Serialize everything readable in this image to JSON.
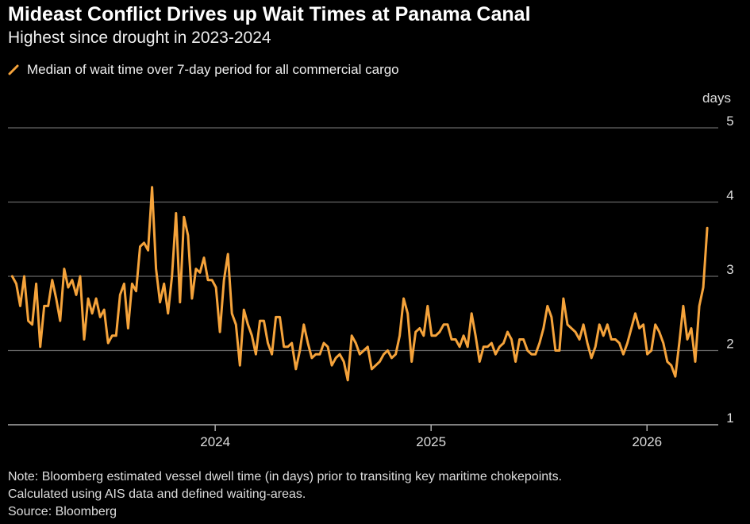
{
  "title": "Mideast Conflict Drives up Wait Times at Panama Canal",
  "subtitle": "Highest since drought in 2023-2024",
  "legend": {
    "label": "Median of wait time over 7-day period for all commercial cargo"
  },
  "footer": {
    "note": "Note: Bloomberg estimated vessel dwell time (in days) prior to transiting key maritime chokepoints.",
    "note2": "Calculated using AIS data and defined waiting-areas.",
    "source": "Source: Bloomberg"
  },
  "colors": {
    "line": "#f5a33b",
    "grid": "#666666",
    "background": "#000000"
  },
  "chart_data": {
    "type": "line",
    "title": "Mideast Conflict Drives up Wait Times at Panama Canal",
    "subtitle": "Highest since drought in 2023-2024",
    "ylabel": "days",
    "xlabel": "",
    "ylim": [
      1,
      5
    ],
    "yticks": [
      1,
      2,
      3,
      4,
      5
    ],
    "xlim": [
      2023.04,
      2026.33
    ],
    "xticks": [
      {
        "value": 2024,
        "label": "2024"
      },
      {
        "value": 2025,
        "label": "2025"
      },
      {
        "value": 2026,
        "label": "2026"
      }
    ],
    "grid": true,
    "legend_position": "top-left",
    "series": [
      {
        "name": "Median of wait time over 7-day period for all commercial cargo",
        "x_start": 2023.06,
        "x_step": 0.0185,
        "values": [
          3.0,
          2.9,
          2.6,
          3.0,
          2.4,
          2.35,
          2.9,
          2.05,
          2.6,
          2.6,
          2.95,
          2.7,
          2.4,
          3.1,
          2.85,
          2.95,
          2.75,
          3.0,
          2.15,
          2.7,
          2.5,
          2.7,
          2.45,
          2.55,
          2.1,
          2.2,
          2.2,
          2.75,
          2.9,
          2.3,
          2.9,
          2.8,
          3.4,
          3.45,
          3.35,
          4.2,
          3.1,
          2.65,
          2.9,
          2.5,
          3.0,
          3.85,
          2.65,
          3.8,
          3.55,
          2.7,
          3.1,
          3.05,
          3.25,
          2.95,
          2.95,
          2.85,
          2.25,
          2.95,
          3.3,
          2.5,
          2.35,
          1.8,
          2.55,
          2.35,
          2.2,
          1.95,
          2.4,
          2.4,
          2.1,
          1.95,
          2.45,
          2.45,
          2.05,
          2.05,
          2.1,
          1.75,
          2.0,
          2.35,
          2.1,
          1.9,
          1.95,
          1.95,
          2.1,
          2.05,
          1.8,
          1.9,
          1.95,
          1.85,
          1.6,
          2.2,
          2.1,
          1.95,
          2.0,
          2.05,
          1.75,
          1.8,
          1.85,
          1.95,
          2.0,
          1.9,
          1.95,
          2.2,
          2.7,
          2.5,
          1.85,
          2.25,
          2.3,
          2.2,
          2.6,
          2.2,
          2.2,
          2.25,
          2.35,
          2.35,
          2.15,
          2.15,
          2.05,
          2.2,
          2.05,
          2.5,
          2.2,
          1.85,
          2.05,
          2.05,
          2.1,
          1.95,
          2.05,
          2.1,
          2.25,
          2.15,
          1.85,
          2.15,
          2.15,
          2.0,
          1.95,
          1.95,
          2.1,
          2.3,
          2.6,
          2.45,
          2.0,
          2.0,
          2.7,
          2.35,
          2.3,
          2.25,
          2.15,
          2.35,
          2.1,
          1.9,
          2.05,
          2.35,
          2.2,
          2.35,
          2.15,
          2.15,
          2.1,
          1.95,
          2.1,
          2.3,
          2.5,
          2.3,
          2.35,
          1.95,
          2.0,
          2.35,
          2.25,
          2.1,
          1.85,
          1.8,
          1.65,
          2.1,
          2.6,
          2.15,
          2.3,
          1.85,
          2.6,
          2.85,
          3.65
        ]
      }
    ]
  }
}
